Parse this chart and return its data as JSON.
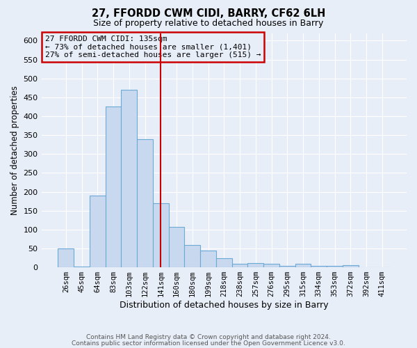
{
  "title1": "27, FFORDD CWM CIDI, BARRY, CF62 6LH",
  "title2": "Size of property relative to detached houses in Barry",
  "xlabel": "Distribution of detached houses by size in Barry",
  "ylabel": "Number of detached properties",
  "bin_labels": [
    "26sqm",
    "45sqm",
    "64sqm",
    "83sqm",
    "103sqm",
    "122sqm",
    "141sqm",
    "160sqm",
    "180sqm",
    "199sqm",
    "218sqm",
    "238sqm",
    "257sqm",
    "276sqm",
    "295sqm",
    "315sqm",
    "334sqm",
    "353sqm",
    "372sqm",
    "392sqm",
    "411sqm"
  ],
  "bar_heights": [
    50,
    2,
    190,
    425,
    470,
    340,
    170,
    107,
    60,
    45,
    25,
    10,
    12,
    10,
    3,
    10,
    3,
    3,
    5,
    1,
    1
  ],
  "bar_color": "#c8d8ef",
  "bar_edge_color": "#6aaad4",
  "vline_color": "#cc0000",
  "annotation_title": "27 FFORDD CWM CIDI: 135sqm",
  "annotation_line1": "← 73% of detached houses are smaller (1,401)",
  "annotation_line2": "27% of semi-detached houses are larger (515) →",
  "annotation_box_edge_color": "#cc0000",
  "ylim": [
    0,
    620
  ],
  "yticks": [
    0,
    50,
    100,
    150,
    200,
    250,
    300,
    350,
    400,
    450,
    500,
    550,
    600
  ],
  "footer1": "Contains HM Land Registry data © Crown copyright and database right 2024.",
  "footer2": "Contains public sector information licensed under the Open Government Licence v3.0.",
  "background_color": "#e8eef8",
  "grid_color": "#ffffff"
}
